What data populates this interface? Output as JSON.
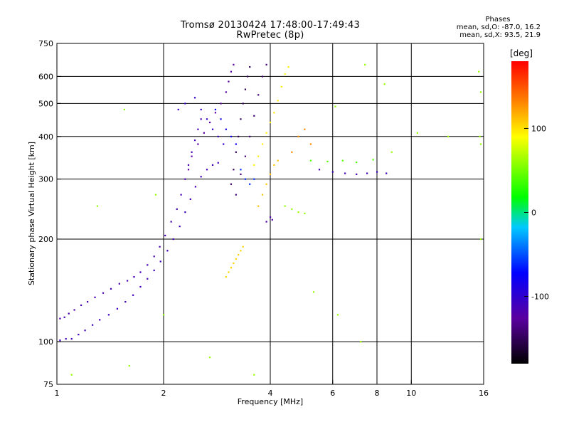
{
  "header": {
    "title": "Tromsø 20130424 17:48:00-17:49:43",
    "subtitle": "RwPretec (8p)"
  },
  "stats": {
    "heading": "Phases",
    "line_o": "mean, sd,O: -87.0, 16.2",
    "line_x": "mean, sd,X:  93.5, 21.9"
  },
  "chart_data": {
    "type": "scatter",
    "xlabel": "Frequency [MHz]",
    "ylabel": "Stationary phase Virtual Height [km]",
    "xscale": "log",
    "yscale": "log",
    "xlim": [
      1,
      16
    ],
    "ylim": [
      75,
      750
    ],
    "x_ticks": [
      1,
      2,
      4,
      6,
      8,
      10,
      16
    ],
    "y_ticks": [
      75,
      100,
      200,
      300,
      400,
      500,
      600,
      750
    ],
    "grid": true,
    "colorbar": {
      "label": "[deg]",
      "range": [
        -180,
        180
      ],
      "ticks": [
        100,
        0,
        -100
      ],
      "colormap": "rainbow"
    },
    "series": [
      {
        "points": [
          [
            1.02,
            117
          ],
          [
            1.05,
            118
          ],
          [
            1.08,
            121
          ],
          [
            1.12,
            124
          ],
          [
            1.17,
            128
          ],
          [
            1.22,
            131
          ],
          [
            1.28,
            135
          ],
          [
            1.35,
            139
          ],
          [
            1.42,
            143
          ],
          [
            1.5,
            148
          ],
          [
            1.58,
            151
          ],
          [
            1.65,
            155
          ],
          [
            1.72,
            160
          ],
          [
            1.8,
            168
          ],
          [
            1.88,
            178
          ],
          [
            1.95,
            190
          ],
          [
            2.02,
            205
          ],
          [
            2.1,
            225
          ],
          [
            2.18,
            245
          ],
          [
            2.24,
            270
          ],
          [
            2.3,
            300
          ],
          [
            2.35,
            330
          ],
          [
            2.4,
            360
          ],
          [
            2.45,
            390
          ],
          [
            2.5,
            420
          ],
          [
            2.55,
            450
          ]
        ],
        "phase": -115
      },
      {
        "points": [
          [
            1.02,
            101
          ],
          [
            1.06,
            102
          ],
          [
            1.1,
            102
          ],
          [
            1.15,
            105
          ],
          [
            1.2,
            108
          ],
          [
            1.26,
            112
          ],
          [
            1.32,
            116
          ],
          [
            1.4,
            120
          ],
          [
            1.48,
            125
          ],
          [
            1.56,
            131
          ],
          [
            1.64,
            137
          ],
          [
            1.72,
            145
          ],
          [
            1.8,
            153
          ],
          [
            1.88,
            162
          ],
          [
            1.96,
            172
          ],
          [
            2.05,
            185
          ],
          [
            2.13,
            200
          ],
          [
            2.22,
            218
          ],
          [
            2.3,
            240
          ],
          [
            2.38,
            262
          ],
          [
            2.46,
            285
          ],
          [
            2.55,
            305
          ],
          [
            2.65,
            320
          ],
          [
            2.75,
            330
          ],
          [
            2.85,
            335
          ]
        ],
        "phase": -110
      },
      {
        "points": [
          [
            2.35,
            320
          ],
          [
            2.4,
            350
          ],
          [
            2.5,
            380
          ],
          [
            2.6,
            410
          ],
          [
            2.7,
            440
          ],
          [
            2.8,
            470
          ],
          [
            2.9,
            500
          ],
          [
            3.0,
            540
          ],
          [
            3.05,
            580
          ],
          [
            3.1,
            620
          ],
          [
            3.15,
            650
          ]
        ],
        "phase": -125
      },
      {
        "points": [
          [
            2.2,
            480
          ],
          [
            2.3,
            500
          ],
          [
            2.45,
            520
          ],
          [
            2.55,
            480
          ],
          [
            2.65,
            450
          ],
          [
            2.75,
            420
          ],
          [
            2.85,
            400
          ],
          [
            2.95,
            380
          ]
        ],
        "phase": -105
      },
      {
        "points": [
          [
            3.1,
            290
          ],
          [
            3.15,
            320
          ],
          [
            3.2,
            360
          ],
          [
            3.25,
            400
          ],
          [
            3.3,
            450
          ],
          [
            3.35,
            500
          ],
          [
            3.4,
            550
          ],
          [
            3.45,
            600
          ],
          [
            3.5,
            640
          ]
        ],
        "phase": -150
      },
      {
        "points": [
          [
            3.2,
            270
          ],
          [
            3.3,
            310
          ],
          [
            3.4,
            350
          ],
          [
            3.5,
            400
          ],
          [
            3.6,
            460
          ],
          [
            3.7,
            530
          ],
          [
            3.8,
            600
          ],
          [
            3.9,
            650
          ]
        ],
        "phase": -140
      },
      {
        "points": [
          [
            3.6,
            330
          ],
          [
            3.7,
            350
          ],
          [
            3.8,
            380
          ],
          [
            3.9,
            410
          ],
          [
            4.0,
            440
          ],
          [
            4.1,
            470
          ],
          [
            4.2,
            510
          ],
          [
            4.3,
            560
          ],
          [
            4.4,
            610
          ],
          [
            4.5,
            640
          ]
        ],
        "phase": 95
      },
      {
        "points": [
          [
            3.7,
            250
          ],
          [
            3.8,
            270
          ],
          [
            3.9,
            290
          ],
          [
            4.0,
            310
          ],
          [
            4.1,
            330
          ],
          [
            4.2,
            340
          ]
        ],
        "phase": 110
      },
      {
        "points": [
          [
            3.0,
            155
          ],
          [
            3.05,
            160
          ],
          [
            3.1,
            165
          ],
          [
            3.15,
            170
          ],
          [
            3.2,
            175
          ],
          [
            3.25,
            180
          ],
          [
            3.3,
            185
          ],
          [
            3.35,
            190
          ]
        ],
        "phase": 105
      },
      {
        "points": [
          [
            3.9,
            225
          ],
          [
            4.0,
            232
          ],
          [
            4.05,
            228
          ]
        ],
        "phase": -120
      },
      {
        "points": [
          [
            3.3,
            320
          ],
          [
            3.4,
            300
          ],
          [
            3.5,
            290
          ],
          [
            3.6,
            300
          ]
        ],
        "phase": -60
      },
      {
        "points": [
          [
            5.5,
            320
          ],
          [
            6.0,
            315
          ],
          [
            6.5,
            312
          ],
          [
            7.0,
            310
          ],
          [
            7.5,
            312
          ],
          [
            8.0,
            315
          ],
          [
            8.5,
            312
          ]
        ],
        "phase": -110
      },
      {
        "points": [
          [
            5.2,
            340
          ],
          [
            5.8,
            338
          ],
          [
            6.4,
            340
          ],
          [
            7.0,
            336
          ],
          [
            7.8,
            342
          ]
        ],
        "phase": 40
      },
      {
        "points": [
          [
            2.8,
            480
          ],
          [
            2.9,
            450
          ],
          [
            3.0,
            420
          ],
          [
            3.1,
            400
          ],
          [
            3.2,
            380
          ]
        ],
        "phase": -80
      },
      {
        "points": [
          [
            4.8,
            400
          ],
          [
            5.0,
            420
          ],
          [
            5.2,
            380
          ],
          [
            4.6,
            360
          ]
        ],
        "phase": 130
      },
      {
        "points": [
          [
            4.4,
            250
          ],
          [
            4.6,
            245
          ],
          [
            4.8,
            240
          ],
          [
            5.0,
            238
          ]
        ],
        "phase": 60
      },
      {
        "points": [
          [
            1.55,
            480
          ],
          [
            1.9,
            270
          ],
          [
            1.3,
            250
          ],
          [
            8.4,
            570
          ],
          [
            10.4,
            410
          ],
          [
            12.7,
            400
          ],
          [
            15.5,
            620
          ],
          [
            15.7,
            540
          ],
          [
            15.6,
            400
          ],
          [
            15.7,
            380
          ],
          [
            7.2,
            100
          ],
          [
            6.2,
            120
          ],
          [
            5.3,
            140
          ],
          [
            3.6,
            80
          ],
          [
            1.1,
            80
          ],
          [
            1.6,
            85
          ],
          [
            2.7,
            90
          ],
          [
            15.7,
            200
          ],
          [
            6.1,
            490
          ],
          [
            8.8,
            360
          ],
          [
            7.4,
            650
          ],
          [
            2.0,
            120
          ]
        ],
        "phase": 60
      }
    ]
  }
}
